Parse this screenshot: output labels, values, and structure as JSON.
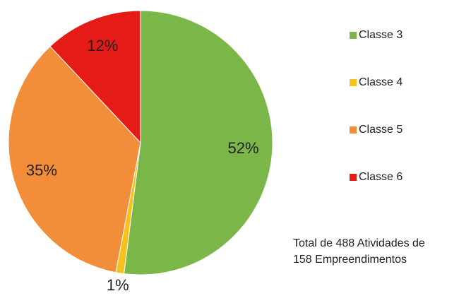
{
  "chart_data": {
    "type": "pie",
    "categories": [
      "Classe 3",
      "Classe 4",
      "Classe 5",
      "Classe 6"
    ],
    "values": [
      52,
      1,
      35,
      12
    ],
    "value_labels": [
      "52%",
      "1%",
      "35%",
      "12%"
    ],
    "colors": [
      "#7ab648",
      "#f5c21b",
      "#f28e3a",
      "#e41b17"
    ],
    "legend": "right",
    "annotation": [
      "Total de 488 Atividades de",
      "158 Empreendimentos"
    ]
  }
}
